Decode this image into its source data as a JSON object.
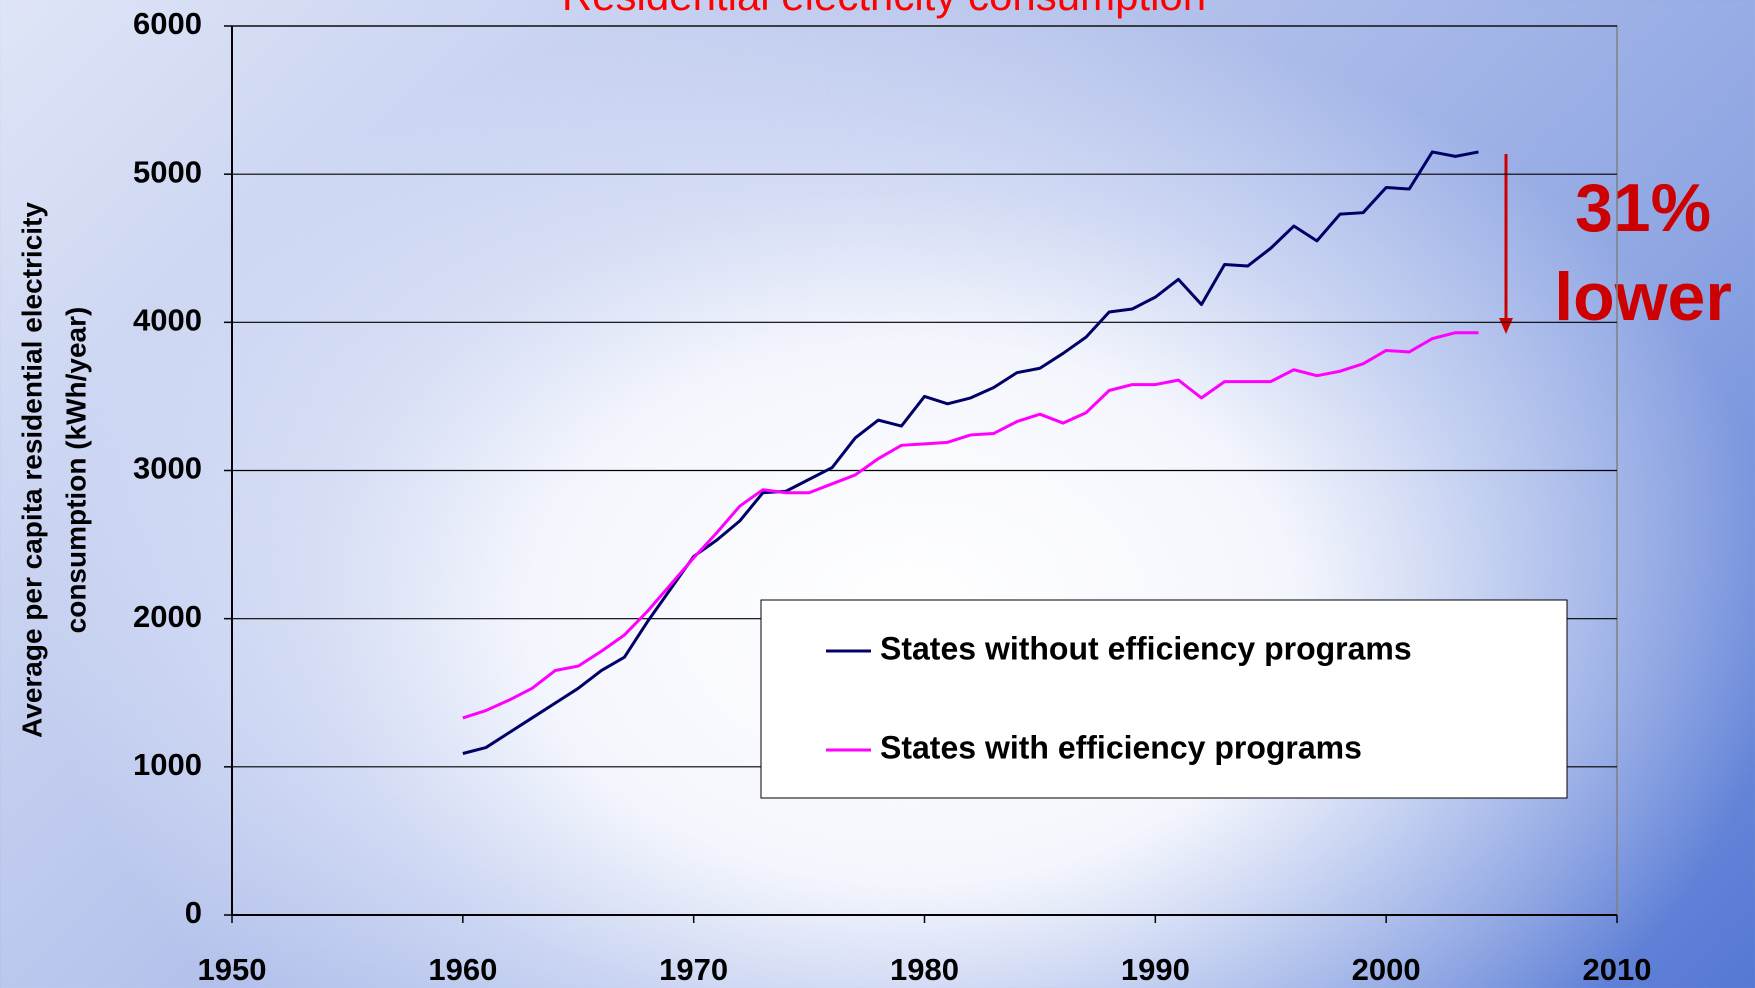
{
  "chart_data": {
    "type": "line",
    "title": "Residential electricity consumption",
    "ylabel": [
      "Average per capita residential electricity",
      "consumption (kWh/year)"
    ],
    "annotations": [
      "31%",
      "lower"
    ],
    "x": [
      1960,
      1961,
      1962,
      1963,
      1964,
      1965,
      1966,
      1967,
      1968,
      1969,
      1970,
      1971,
      1972,
      1973,
      1974,
      1975,
      1976,
      1977,
      1978,
      1979,
      1980,
      1981,
      1982,
      1983,
      1984,
      1985,
      1986,
      1987,
      1988,
      1989,
      1990,
      1991,
      1992,
      1993,
      1994,
      1995,
      1996,
      1997,
      1998,
      1999,
      2000,
      2001,
      2002,
      2003,
      2004
    ],
    "series": [
      {
        "name": "States without efficiency programs",
        "color": "#000066",
        "values": [
          1090,
          1130,
          1230,
          1330,
          1430,
          1530,
          1650,
          1740,
          1980,
          2200,
          2420,
          2530,
          2660,
          2850,
          2860,
          2940,
          3020,
          3220,
          3340,
          3300,
          3500,
          3450,
          3490,
          3560,
          3660,
          3690,
          3790,
          3900,
          4070,
          4090,
          4170,
          4290,
          4120,
          4390,
          4380,
          4500,
          4650,
          4550,
          4730,
          4740,
          4910,
          4900,
          5150,
          5120,
          5150
        ]
      },
      {
        "name": "States with efficiency programs",
        "color": "#ff00ff",
        "values": [
          1330,
          1380,
          1450,
          1530,
          1650,
          1680,
          1780,
          1890,
          2050,
          2230,
          2410,
          2580,
          2760,
          2870,
          2850,
          2850,
          2910,
          2970,
          3080,
          3170,
          3180,
          3190,
          3240,
          3250,
          3330,
          3380,
          3320,
          3390,
          3540,
          3580,
          3580,
          3610,
          3490,
          3600,
          3600,
          3600,
          3680,
          3640,
          3670,
          3720,
          3810,
          3800,
          3890,
          3930,
          3930
        ]
      }
    ],
    "xlim": [
      1950,
      2010
    ],
    "xticks": [
      1950,
      1960,
      1970,
      1980,
      1990,
      2000,
      2010
    ],
    "ylim": [
      0,
      6000
    ],
    "yticks": [
      0,
      1000,
      2000,
      3000,
      4000,
      5000,
      6000
    ],
    "grid": true,
    "annotation_color": "#cc0000"
  }
}
